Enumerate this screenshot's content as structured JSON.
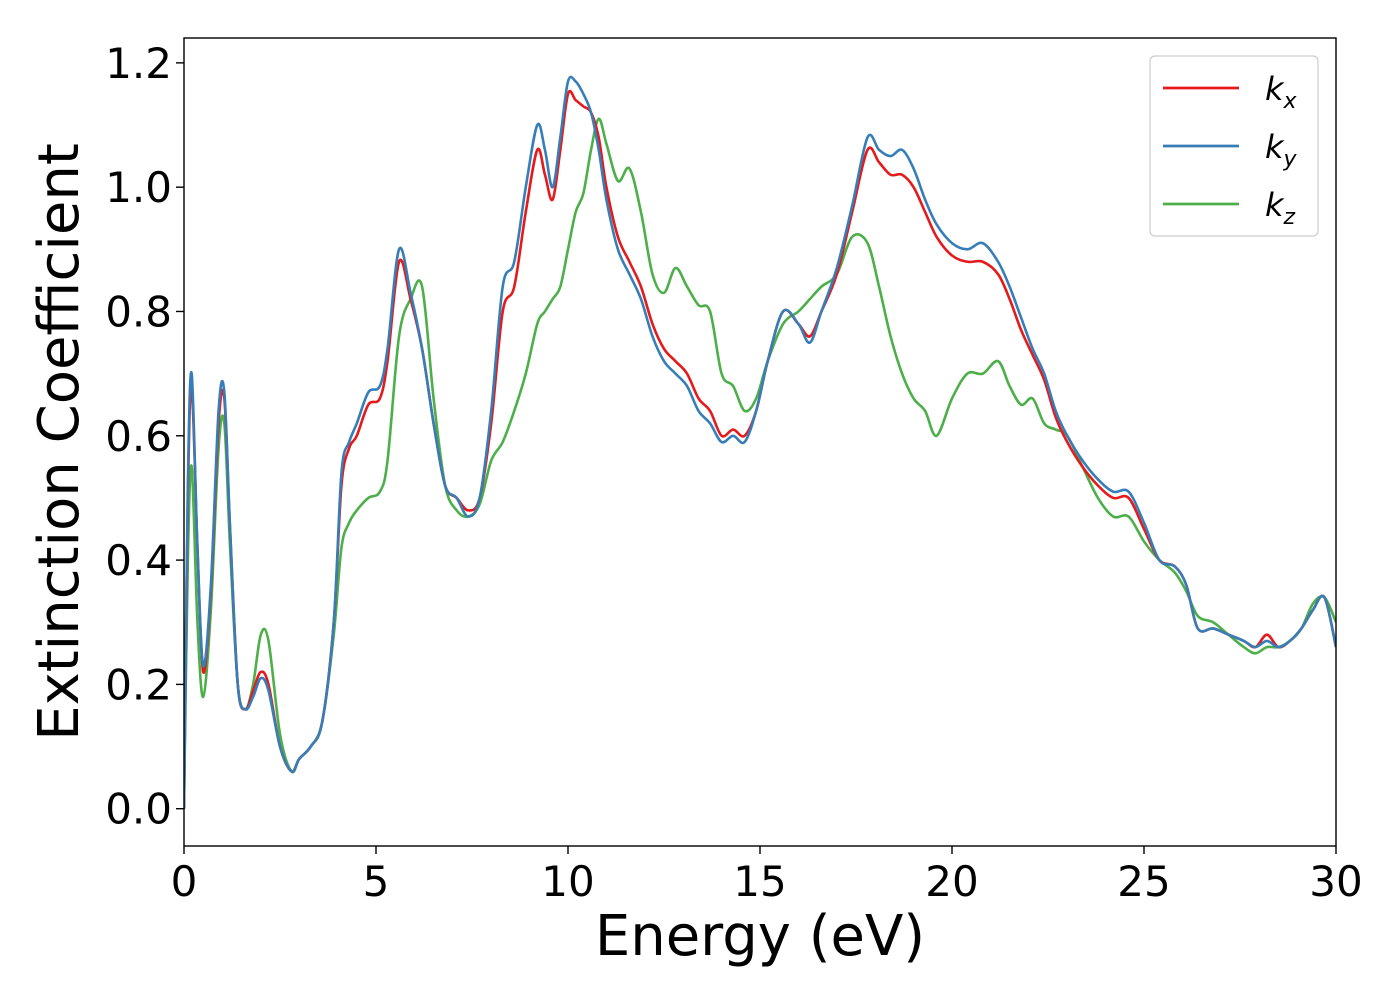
{
  "chart_data": {
    "type": "line",
    "title": "",
    "xlabel": "Energy (eV)",
    "ylabel": "Extinction Coefficient",
    "xlim": [
      0,
      30
    ],
    "ylim": [
      -0.06,
      1.24
    ],
    "xticks": [
      0,
      5,
      10,
      15,
      20,
      25,
      30
    ],
    "xtick_labels": [
      "0",
      "5",
      "10",
      "15",
      "20",
      "25",
      "30"
    ],
    "yticks": [
      0.0,
      0.2,
      0.4,
      0.6,
      0.8,
      1.0,
      1.2
    ],
    "ytick_labels": [
      "0.0",
      "0.2",
      "0.4",
      "0.6",
      "0.8",
      "1.0",
      "1.2"
    ],
    "grid": false,
    "legend": "top-right",
    "series": [
      {
        "name": "k_x",
        "legend_main": "k",
        "legend_sub": "x",
        "color": "#e41a1c",
        "x": [
          0,
          0.1,
          0.2,
          0.35,
          0.5,
          0.7,
          0.9,
          1.05,
          1.2,
          1.4,
          1.6,
          1.8,
          2.0,
          2.2,
          2.5,
          2.8,
          3.0,
          3.3,
          3.6,
          3.9,
          4.1,
          4.3,
          4.5,
          4.8,
          5.1,
          5.3,
          5.6,
          5.9,
          6.2,
          6.5,
          6.8,
          7.1,
          7.4,
          7.7,
          8.0,
          8.3,
          8.6,
          8.9,
          9.2,
          9.4,
          9.6,
          9.8,
          10.0,
          10.2,
          10.4,
          10.6,
          10.8,
          11.0,
          11.3,
          11.6,
          11.9,
          12.2,
          12.5,
          12.8,
          13.1,
          13.4,
          13.7,
          14.0,
          14.3,
          14.6,
          14.9,
          15.2,
          15.6,
          16.0,
          16.3,
          16.6,
          17.0,
          17.4,
          17.8,
          18.1,
          18.4,
          18.7,
          19.0,
          19.3,
          19.6,
          20.0,
          20.4,
          20.8,
          21.2,
          21.5,
          21.8,
          22.1,
          22.4,
          22.7,
          23.0,
          23.4,
          23.8,
          24.2,
          24.6,
          25.0,
          25.4,
          25.8,
          26.1,
          26.4,
          26.8,
          27.2,
          27.6,
          27.9,
          28.2,
          28.5,
          28.8,
          29.1,
          29.4,
          29.7,
          30.0
        ],
        "y": [
          0.0,
          0.5,
          0.68,
          0.42,
          0.22,
          0.35,
          0.62,
          0.66,
          0.45,
          0.2,
          0.16,
          0.19,
          0.22,
          0.2,
          0.1,
          0.06,
          0.08,
          0.1,
          0.14,
          0.3,
          0.52,
          0.58,
          0.6,
          0.65,
          0.66,
          0.72,
          0.88,
          0.82,
          0.74,
          0.62,
          0.52,
          0.5,
          0.48,
          0.5,
          0.62,
          0.8,
          0.84,
          0.96,
          1.06,
          1.02,
          0.98,
          1.06,
          1.15,
          1.14,
          1.13,
          1.12,
          1.08,
          1.0,
          0.92,
          0.88,
          0.84,
          0.78,
          0.74,
          0.72,
          0.7,
          0.66,
          0.64,
          0.6,
          0.61,
          0.6,
          0.64,
          0.72,
          0.8,
          0.78,
          0.76,
          0.8,
          0.86,
          0.96,
          1.06,
          1.04,
          1.02,
          1.02,
          1.0,
          0.96,
          0.92,
          0.89,
          0.88,
          0.88,
          0.86,
          0.82,
          0.77,
          0.73,
          0.69,
          0.63,
          0.59,
          0.55,
          0.52,
          0.5,
          0.5,
          0.45,
          0.4,
          0.39,
          0.36,
          0.29,
          0.29,
          0.28,
          0.27,
          0.26,
          0.28,
          0.26,
          0.27,
          0.29,
          0.32,
          0.34,
          0.26
        ]
      },
      {
        "name": "k_y",
        "legend_main": "k",
        "legend_sub": "y",
        "color": "#377eb8",
        "x": [
          0,
          0.1,
          0.2,
          0.35,
          0.5,
          0.7,
          0.9,
          1.05,
          1.2,
          1.4,
          1.6,
          1.8,
          2.0,
          2.2,
          2.5,
          2.8,
          3.0,
          3.3,
          3.6,
          3.9,
          4.1,
          4.3,
          4.5,
          4.8,
          5.1,
          5.3,
          5.6,
          5.9,
          6.2,
          6.5,
          6.8,
          7.1,
          7.4,
          7.7,
          8.0,
          8.3,
          8.6,
          8.9,
          9.2,
          9.4,
          9.6,
          9.8,
          10.0,
          10.2,
          10.4,
          10.6,
          10.8,
          11.0,
          11.3,
          11.6,
          11.9,
          12.2,
          12.5,
          12.8,
          13.1,
          13.4,
          13.7,
          14.0,
          14.3,
          14.6,
          14.9,
          15.2,
          15.6,
          16.0,
          16.3,
          16.6,
          17.0,
          17.4,
          17.8,
          18.1,
          18.4,
          18.7,
          19.0,
          19.3,
          19.6,
          20.0,
          20.4,
          20.8,
          21.2,
          21.5,
          21.8,
          22.1,
          22.4,
          22.7,
          23.0,
          23.4,
          23.8,
          24.2,
          24.6,
          25.0,
          25.4,
          25.8,
          26.1,
          26.4,
          26.8,
          27.2,
          27.6,
          27.9,
          28.2,
          28.5,
          28.8,
          29.1,
          29.4,
          29.7,
          30.0
        ],
        "y": [
          0.0,
          0.52,
          0.7,
          0.42,
          0.23,
          0.36,
          0.64,
          0.67,
          0.45,
          0.2,
          0.16,
          0.18,
          0.21,
          0.19,
          0.1,
          0.06,
          0.08,
          0.1,
          0.14,
          0.3,
          0.54,
          0.59,
          0.62,
          0.67,
          0.68,
          0.74,
          0.9,
          0.83,
          0.74,
          0.62,
          0.52,
          0.5,
          0.47,
          0.5,
          0.64,
          0.84,
          0.88,
          1.0,
          1.1,
          1.06,
          1.0,
          1.08,
          1.17,
          1.17,
          1.15,
          1.12,
          1.06,
          0.98,
          0.9,
          0.86,
          0.82,
          0.76,
          0.72,
          0.7,
          0.68,
          0.64,
          0.62,
          0.59,
          0.6,
          0.59,
          0.64,
          0.72,
          0.8,
          0.78,
          0.75,
          0.8,
          0.87,
          0.97,
          1.08,
          1.06,
          1.05,
          1.06,
          1.03,
          0.98,
          0.94,
          0.91,
          0.9,
          0.91,
          0.88,
          0.84,
          0.79,
          0.74,
          0.7,
          0.64,
          0.6,
          0.56,
          0.53,
          0.51,
          0.51,
          0.46,
          0.4,
          0.39,
          0.36,
          0.29,
          0.29,
          0.28,
          0.27,
          0.26,
          0.27,
          0.26,
          0.27,
          0.29,
          0.32,
          0.34,
          0.26
        ]
      },
      {
        "name": "k_z",
        "legend_main": "k",
        "legend_sub": "z",
        "color": "#4daf4a",
        "x": [
          0,
          0.1,
          0.2,
          0.35,
          0.5,
          0.7,
          0.9,
          1.05,
          1.2,
          1.4,
          1.6,
          1.8,
          2.0,
          2.2,
          2.5,
          2.8,
          3.0,
          3.3,
          3.6,
          3.9,
          4.1,
          4.3,
          4.5,
          4.8,
          5.1,
          5.3,
          5.6,
          5.9,
          6.2,
          6.5,
          6.8,
          7.1,
          7.4,
          7.7,
          8.0,
          8.3,
          8.6,
          8.9,
          9.2,
          9.4,
          9.6,
          9.8,
          10.0,
          10.2,
          10.4,
          10.6,
          10.8,
          11.0,
          11.3,
          11.6,
          11.9,
          12.2,
          12.5,
          12.8,
          13.1,
          13.4,
          13.7,
          14.0,
          14.3,
          14.6,
          14.9,
          15.2,
          15.6,
          16.0,
          16.3,
          16.6,
          17.0,
          17.4,
          17.8,
          18.1,
          18.4,
          18.7,
          19.0,
          19.3,
          19.6,
          20.0,
          20.4,
          20.8,
          21.2,
          21.5,
          21.8,
          22.1,
          22.4,
          22.7,
          23.0,
          23.4,
          23.8,
          24.2,
          24.6,
          25.0,
          25.4,
          25.8,
          26.1,
          26.4,
          26.8,
          27.2,
          27.6,
          27.9,
          28.2,
          28.5,
          28.8,
          29.1,
          29.4,
          29.7,
          30.0
        ],
        "y": [
          0.0,
          0.4,
          0.55,
          0.3,
          0.18,
          0.32,
          0.58,
          0.62,
          0.42,
          0.2,
          0.16,
          0.2,
          0.28,
          0.27,
          0.12,
          0.06,
          0.08,
          0.1,
          0.14,
          0.28,
          0.42,
          0.46,
          0.48,
          0.5,
          0.51,
          0.56,
          0.76,
          0.82,
          0.84,
          0.66,
          0.52,
          0.48,
          0.47,
          0.49,
          0.56,
          0.59,
          0.64,
          0.7,
          0.78,
          0.8,
          0.82,
          0.84,
          0.9,
          0.96,
          0.99,
          1.06,
          1.11,
          1.07,
          1.01,
          1.03,
          0.96,
          0.86,
          0.83,
          0.87,
          0.84,
          0.81,
          0.8,
          0.7,
          0.68,
          0.64,
          0.66,
          0.72,
          0.78,
          0.8,
          0.82,
          0.84,
          0.86,
          0.92,
          0.91,
          0.84,
          0.76,
          0.7,
          0.66,
          0.64,
          0.6,
          0.66,
          0.7,
          0.7,
          0.72,
          0.68,
          0.65,
          0.66,
          0.62,
          0.61,
          0.6,
          0.55,
          0.5,
          0.47,
          0.47,
          0.43,
          0.4,
          0.38,
          0.35,
          0.31,
          0.3,
          0.28,
          0.26,
          0.25,
          0.26,
          0.26,
          0.27,
          0.29,
          0.33,
          0.34,
          0.3
        ]
      }
    ]
  }
}
